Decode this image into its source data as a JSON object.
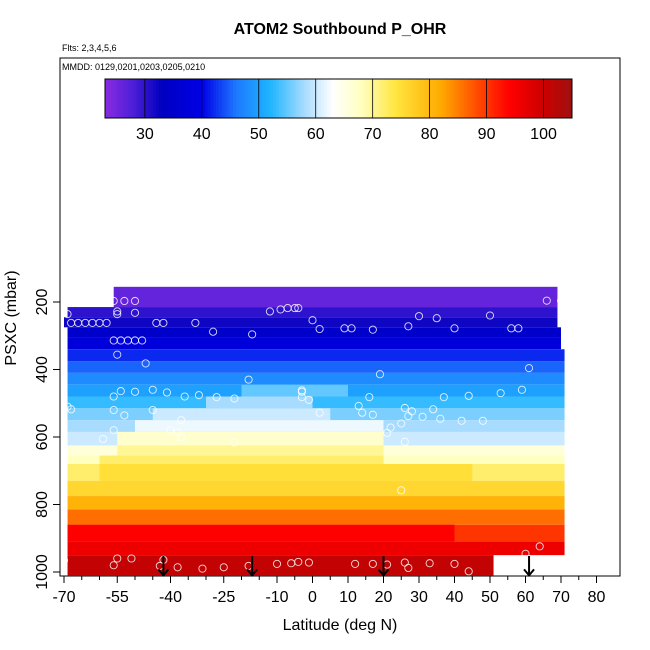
{
  "chart_data": {
    "type": "heatmap",
    "title": "ATOM2 Southbound P_OHR",
    "notes": [
      "Flts: 2,3,4,5,6",
      "MMDD: 0129,0201,0203,0205,0210"
    ],
    "xlabel": "Latitude (deg N)",
    "ylabel": "PSXC (mbar)",
    "xlim": [
      -70,
      85
    ],
    "ylim": [
      1000,
      0
    ],
    "x_ticks": [
      -70,
      -55,
      -40,
      -25,
      -10,
      0,
      10,
      20,
      30,
      40,
      50,
      60,
      70,
      80
    ],
    "x_minor_ticks": [
      -65,
      -60,
      -50,
      -45,
      -35,
      -30,
      -20,
      -15,
      -5,
      5,
      15,
      25,
      35,
      45,
      55,
      65,
      75
    ],
    "y_ticks": [
      200,
      400,
      600,
      800,
      1000
    ],
    "colorbar": {
      "min": 23,
      "max": 105,
      "ticks": [
        30,
        40,
        50,
        60,
        70,
        80,
        90,
        100
      ],
      "stops": [
        {
          "v": 23,
          "c": "#8a2be2"
        },
        {
          "v": 28,
          "c": "#4b1fd6"
        },
        {
          "v": 33,
          "c": "#0000c0"
        },
        {
          "v": 40,
          "c": "#0000e6"
        },
        {
          "v": 46,
          "c": "#1e78ff"
        },
        {
          "v": 52,
          "c": "#1eb4ff"
        },
        {
          "v": 58,
          "c": "#a8dcff"
        },
        {
          "v": 63,
          "c": "#ffffff"
        },
        {
          "v": 68,
          "c": "#ffffc0"
        },
        {
          "v": 74,
          "c": "#ffe640"
        },
        {
          "v": 82,
          "c": "#ffaa00"
        },
        {
          "v": 88,
          "c": "#ff5000"
        },
        {
          "v": 94,
          "c": "#ff0000"
        },
        {
          "v": 100,
          "c": "#cc0000"
        },
        {
          "v": 105,
          "c": "#a01010"
        }
      ]
    },
    "bands": [
      {
        "p": [
          155,
          215
        ],
        "segments": [
          {
            "x": [
              -56,
              69
            ],
            "v": 26
          }
        ]
      },
      {
        "p": [
          215,
          245
        ],
        "segments": [
          {
            "x": [
              -69,
              69
            ],
            "v": 30
          }
        ]
      },
      {
        "p": [
          245,
          275
        ],
        "segments": [
          {
            "x": [
              -70,
              69
            ],
            "v": 32
          }
        ]
      },
      {
        "p": [
          275,
          305
        ],
        "segments": [
          {
            "x": [
              -69,
              70
            ],
            "v": 35
          }
        ]
      },
      {
        "p": [
          305,
          340
        ],
        "segments": [
          {
            "x": [
              -69,
              70
            ],
            "v": 38
          }
        ]
      },
      {
        "p": [
          340,
          375
        ],
        "segments": [
          {
            "x": [
              -69,
              71
            ],
            "v": 42
          }
        ]
      },
      {
        "p": [
          375,
          410
        ],
        "segments": [
          {
            "x": [
              -69,
              71
            ],
            "v": 45
          }
        ]
      },
      {
        "p": [
          410,
          445
        ],
        "segments": [
          {
            "x": [
              -69,
              71
            ],
            "v": 48
          }
        ]
      },
      {
        "p": [
          445,
          480
        ],
        "segments": [
          {
            "x": [
              -69,
              71
            ],
            "v": 50
          },
          {
            "x": [
              -20,
              10
            ],
            "v": 55
          }
        ]
      },
      {
        "p": [
          480,
          515
        ],
        "segments": [
          {
            "x": [
              -69,
              71
            ],
            "v": 53
          },
          {
            "x": [
              -30,
              0
            ],
            "v": 58
          }
        ]
      },
      {
        "p": [
          515,
          550
        ],
        "segments": [
          {
            "x": [
              -69,
              71
            ],
            "v": 56
          },
          {
            "x": [
              -45,
              5
            ],
            "v": 60
          }
        ]
      },
      {
        "p": [
          550,
          585
        ],
        "segments": [
          {
            "x": [
              -69,
              71
            ],
            "v": 58
          },
          {
            "x": [
              -50,
              20
            ],
            "v": 62
          }
        ]
      },
      {
        "p": [
          585,
          625
        ],
        "segments": [
          {
            "x": [
              -69,
              71
            ],
            "v": 60
          },
          {
            "x": [
              -55,
              20
            ],
            "v": 67
          }
        ]
      },
      {
        "p": [
          625,
          655
        ],
        "segments": [
          {
            "x": [
              -69,
              71
            ],
            "v": 66
          },
          {
            "x": [
              -55,
              20
            ],
            "v": 70
          }
        ]
      },
      {
        "p": [
          655,
          680
        ],
        "segments": [
          {
            "x": [
              -69,
              71
            ],
            "v": 68
          },
          {
            "x": [
              -60,
              20
            ],
            "v": 72
          }
        ]
      },
      {
        "p": [
          680,
          730
        ],
        "segments": [
          {
            "x": [
              -69,
              71
            ],
            "v": 72
          },
          {
            "x": [
              -60,
              45
            ],
            "v": 75
          }
        ]
      },
      {
        "p": [
          730,
          775
        ],
        "segments": [
          {
            "x": [
              -69,
              71
            ],
            "v": 76
          }
        ]
      },
      {
        "p": [
          775,
          815
        ],
        "segments": [
          {
            "x": [
              -69,
              71
            ],
            "v": 81
          }
        ]
      },
      {
        "p": [
          815,
          860
        ],
        "segments": [
          {
            "x": [
              -69,
              71
            ],
            "v": 86
          }
        ]
      },
      {
        "p": [
          860,
          910
        ],
        "segments": [
          {
            "x": [
              -69,
              71
            ],
            "v": 90
          },
          {
            "x": [
              -69,
              40
            ],
            "v": 94
          }
        ]
      },
      {
        "p": [
          910,
          950
        ],
        "segments": [
          {
            "x": [
              -69,
              71
            ],
            "v": 96
          }
        ]
      },
      {
        "p": [
          950,
          1010
        ],
        "segments": [
          {
            "x": [
              -69,
              51
            ],
            "v": 101
          }
        ]
      }
    ],
    "flight_points": [
      [
        -69,
        236
      ],
      [
        -56,
        197
      ],
      [
        -53,
        197
      ],
      [
        -50,
        197
      ],
      [
        -68,
        262
      ],
      [
        -66,
        262
      ],
      [
        -64,
        262
      ],
      [
        -62,
        262
      ],
      [
        -60,
        262
      ],
      [
        -58,
        262
      ],
      [
        -55,
        228
      ],
      [
        -55,
        236
      ],
      [
        -50,
        232
      ],
      [
        -56,
        314
      ],
      [
        -54,
        314
      ],
      [
        -52,
        314
      ],
      [
        -50,
        314
      ],
      [
        -48,
        314
      ],
      [
        -44,
        262
      ],
      [
        -42,
        262
      ],
      [
        -33,
        262
      ],
      [
        -28,
        288
      ],
      [
        -17,
        296
      ],
      [
        -12,
        228
      ],
      [
        -9,
        222
      ],
      [
        -7,
        218
      ],
      [
        -5,
        218
      ],
      [
        -4,
        218
      ],
      [
        0,
        254
      ],
      [
        2,
        280
      ],
      [
        9,
        278
      ],
      [
        11,
        278
      ],
      [
        17,
        282
      ],
      [
        27,
        272
      ],
      [
        30,
        242
      ],
      [
        35,
        248
      ],
      [
        40,
        278
      ],
      [
        50,
        240
      ],
      [
        56,
        278
      ],
      [
        58,
        278
      ],
      [
        66,
        196
      ],
      [
        70,
        196
      ],
      [
        -55,
        356
      ],
      [
        -47,
        382
      ],
      [
        -18,
        430
      ],
      [
        -3,
        462
      ],
      [
        -3,
        466
      ],
      [
        19,
        414
      ],
      [
        61,
        396
      ],
      [
        -69,
        510
      ],
      [
        -68,
        518
      ],
      [
        -56,
        480
      ],
      [
        -54,
        464
      ],
      [
        -50,
        466
      ],
      [
        -45,
        460
      ],
      [
        -41,
        468
      ],
      [
        -36,
        480
      ],
      [
        -32,
        476
      ],
      [
        -27,
        482
      ],
      [
        -22,
        486
      ],
      [
        -3,
        482
      ],
      [
        -1,
        490
      ],
      [
        13,
        508
      ],
      [
        16,
        482
      ],
      [
        26,
        514
      ],
      [
        27,
        538
      ],
      [
        28,
        524
      ],
      [
        34,
        518
      ],
      [
        37,
        482
      ],
      [
        44,
        478
      ],
      [
        53,
        470
      ],
      [
        59,
        460
      ],
      [
        -56,
        520
      ],
      [
        -53,
        536
      ],
      [
        -45,
        520
      ],
      [
        -37,
        550
      ],
      [
        2,
        528
      ],
      [
        14,
        528
      ],
      [
        17,
        534
      ],
      [
        22,
        572
      ],
      [
        25,
        560
      ],
      [
        31,
        540
      ],
      [
        36,
        546
      ],
      [
        42,
        552
      ],
      [
        48,
        552
      ],
      [
        -59,
        606
      ],
      [
        -56,
        580
      ],
      [
        -40,
        580
      ],
      [
        -22,
        616
      ],
      [
        21,
        588
      ],
      [
        26,
        614
      ],
      [
        -38,
        586
      ],
      [
        -37,
        600
      ],
      [
        25,
        758
      ],
      [
        64,
        924
      ],
      [
        -70,
        966
      ],
      [
        -55,
        960
      ],
      [
        -56,
        980
      ],
      [
        -51,
        960
      ],
      [
        -42,
        964
      ],
      [
        -43,
        982
      ],
      [
        -38,
        986
      ],
      [
        -31,
        990
      ],
      [
        -25,
        986
      ],
      [
        -18,
        982
      ],
      [
        -10,
        976
      ],
      [
        -6,
        974
      ],
      [
        -4,
        970
      ],
      [
        -1,
        972
      ],
      [
        12,
        976
      ],
      [
        17,
        976
      ],
      [
        21,
        978
      ],
      [
        26,
        972
      ],
      [
        27,
        988
      ],
      [
        33,
        974
      ],
      [
        40,
        976
      ],
      [
        44,
        998
      ],
      [
        53,
        964
      ],
      [
        60,
        946
      ]
    ],
    "markers_x": [
      -42,
      -17,
      20,
      61
    ],
    "marker_p": 1000,
    "marker_head_p": 1010
  }
}
